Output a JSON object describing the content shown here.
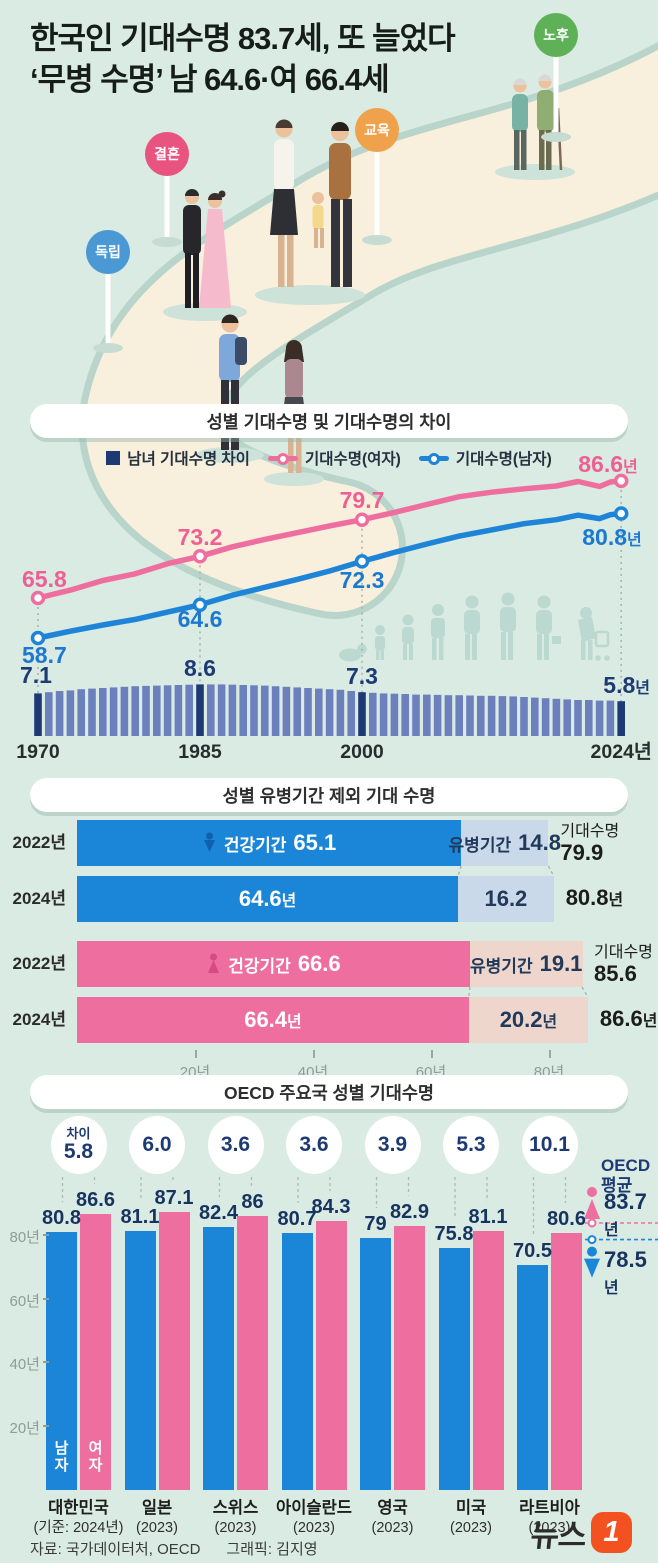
{
  "title": {
    "line1": "한국인 기대수명 83.7세, 또 늘었다",
    "line2": "‘무병 수명’ 남 64.6·여 66.4세"
  },
  "signs": [
    {
      "label": "독립",
      "color": "#4a98d4"
    },
    {
      "label": "결혼",
      "color": "#e8537f"
    },
    {
      "label": "교육",
      "color": "#f0a14b"
    },
    {
      "label": "노후",
      "color": "#5fb158"
    }
  ],
  "colors": {
    "mint_bg": "#d9ebe2",
    "navy": "#1e3a74",
    "diff_bar": "#6d80be",
    "female_pink": "#ee6f9f",
    "male_blue": "#1b86d8",
    "female_light": "#eed6cc",
    "male_light": "#c9d9e9",
    "female_label": "#ee5f94",
    "male_label": "#1d78cf",
    "silhouette": "#bcd9d1",
    "logo_orange": "#f3511f"
  },
  "chart_data": [
    {
      "type": "line",
      "title": "성별 기대수명 및 기대수명의 차이",
      "legend": [
        "남녀 기대수명 차이",
        "기대수명(여자)",
        "기대수명(남자)"
      ],
      "x_axis_labels": [
        "1970",
        "1985",
        "2000",
        "2024년"
      ],
      "anchor_years": [
        1970,
        1985,
        2000,
        2024
      ],
      "series": [
        {
          "name": "기대수명(여자)",
          "color": "#ee6f9f",
          "label_color": "#ee5f94",
          "points": [
            [
              1970,
              65.8
            ],
            [
              1973,
              67.2
            ],
            [
              1976,
              68.9
            ],
            [
              1979,
              70.1
            ],
            [
              1982,
              71.9
            ],
            [
              1985,
              73.2
            ],
            [
              1988,
              74.9
            ],
            [
              1991,
              76.2
            ],
            [
              1994,
              77.4
            ],
            [
              1997,
              78.6
            ],
            [
              2000,
              79.7
            ],
            [
              2003,
              81.0
            ],
            [
              2006,
              82.4
            ],
            [
              2009,
              83.8
            ],
            [
              2012,
              84.6
            ],
            [
              2015,
              85.2
            ],
            [
              2018,
              85.7
            ],
            [
              2020,
              86.5
            ],
            [
              2022,
              85.6
            ],
            [
              2023,
              86.4
            ],
            [
              2024,
              86.6
            ]
          ],
          "callouts": {
            "1970": "65.8",
            "1985": "73.2",
            "2000": "79.7",
            "2024": "86.6년"
          }
        },
        {
          "name": "기대수명(남자)",
          "color": "#1d84d8",
          "label_color": "#1d78cf",
          "points": [
            [
              1970,
              58.7
            ],
            [
              1973,
              59.9
            ],
            [
              1976,
              61.0
            ],
            [
              1979,
              62.0
            ],
            [
              1982,
              63.3
            ],
            [
              1985,
              64.6
            ],
            [
              1988,
              66.3
            ],
            [
              1991,
              67.7
            ],
            [
              1994,
              69.1
            ],
            [
              1997,
              70.6
            ],
            [
              2000,
              72.3
            ],
            [
              2003,
              73.9
            ],
            [
              2006,
              75.4
            ],
            [
              2009,
              76.8
            ],
            [
              2012,
              77.9
            ],
            [
              2015,
              79.0
            ],
            [
              2018,
              79.7
            ],
            [
              2020,
              80.5
            ],
            [
              2022,
              79.9
            ],
            [
              2023,
              80.6
            ],
            [
              2024,
              80.8
            ]
          ],
          "callouts": {
            "1970": "58.7",
            "1985": "64.6",
            "2000": "72.3",
            "2024": "80.8년"
          }
        }
      ],
      "diff": {
        "name": "남녀 기대수명 차이",
        "start_year": 1970,
        "values": [
          7.1,
          7.3,
          7.5,
          7.6,
          7.8,
          7.9,
          8.0,
          8.1,
          8.2,
          8.3,
          8.35,
          8.4,
          8.45,
          8.5,
          8.55,
          8.6,
          8.6,
          8.6,
          8.55,
          8.5,
          8.45,
          8.4,
          8.3,
          8.2,
          8.1,
          8.0,
          7.9,
          7.8,
          7.7,
          7.5,
          7.3,
          7.2,
          7.1,
          7.05,
          7.0,
          6.9,
          6.9,
          6.85,
          6.8,
          6.8,
          6.75,
          6.7,
          6.7,
          6.65,
          6.6,
          6.5,
          6.4,
          6.3,
          6.2,
          6.1,
          6.0,
          6.0,
          5.9,
          5.9,
          5.8
        ],
        "highlight_years": [
          1970,
          1985,
          2000,
          2024
        ],
        "callouts": {
          "1970": "7.1",
          "1985": "8.6",
          "2000": "7.3",
          "2024": "5.8년"
        }
      }
    },
    {
      "type": "stacked-bar",
      "title": "성별 유병기간 제외 기대 수명",
      "x_ticks": [
        {
          "v": 20,
          "label": "20년"
        },
        {
          "v": 40,
          "label": "40년"
        },
        {
          "v": 60,
          "label": "60년"
        },
        {
          "v": 80,
          "label": "80년"
        }
      ],
      "rows": [
        {
          "year": "2022년",
          "gender": "male",
          "show_icon": true,
          "healthy": {
            "v": 65.1,
            "caption": "건강기간",
            "value": "65.1"
          },
          "morbid": {
            "v": 14.8,
            "caption": "유병기간",
            "value": "14.8"
          },
          "total": {
            "v": 79.9,
            "caption": "기대수명",
            "value": "79.9"
          }
        },
        {
          "year": "2024년",
          "gender": "male",
          "show_icon": false,
          "healthy": {
            "v": 64.6,
            "caption": "",
            "value": "64.6년"
          },
          "morbid": {
            "v": 16.2,
            "caption": "",
            "value": "16.2"
          },
          "total": {
            "v": 80.8,
            "caption": "",
            "value": "80.8년"
          }
        },
        {
          "year": "2022년",
          "gender": "female",
          "show_icon": true,
          "healthy": {
            "v": 66.6,
            "caption": "건강기간",
            "value": "66.6"
          },
          "morbid": {
            "v": 19.1,
            "caption": "유병기간",
            "value": "19.1"
          },
          "total": {
            "v": 85.6,
            "caption": "기대수명",
            "value": "85.6"
          }
        },
        {
          "year": "2024년",
          "gender": "female",
          "show_icon": false,
          "healthy": {
            "v": 66.4,
            "caption": "",
            "value": "66.4년"
          },
          "morbid": {
            "v": 20.2,
            "caption": "",
            "value": "20.2년"
          },
          "total": {
            "v": 86.6,
            "caption": "",
            "value": "86.6년"
          }
        }
      ]
    },
    {
      "type": "grouped-bar",
      "title": "OECD 주요국 성별 기대수명",
      "y_ticks": [
        {
          "v": 80,
          "label": "80년"
        },
        {
          "v": 60,
          "label": "60년"
        },
        {
          "v": 40,
          "label": "40년"
        },
        {
          "v": 20,
          "label": "20년"
        }
      ],
      "bar_labels": {
        "male": "남자",
        "female": "여자"
      },
      "diff_caption": "차이",
      "countries": [
        {
          "name": "대한민국",
          "note": "(기준: 2024년)",
          "male": 80.8,
          "female": 86.6,
          "male_label": "80.8",
          "female_label": "86.6",
          "diff": "5.8"
        },
        {
          "name": "일본",
          "note": "(2023)",
          "male": 81.1,
          "female": 87.1,
          "male_label": "81.1",
          "female_label": "87.1",
          "diff": "6.0"
        },
        {
          "name": "스위스",
          "note": "(2023)",
          "male": 82.4,
          "female": 86,
          "male_label": "82.4",
          "female_label": "86",
          "diff": "3.6"
        },
        {
          "name": "아이슬란드",
          "note": "(2023)",
          "male": 80.7,
          "female": 84.3,
          "male_label": "80.7",
          "female_label": "84.3",
          "diff": "3.6"
        },
        {
          "name": "영국",
          "note": "(2023)",
          "male": 79,
          "female": 82.9,
          "male_label": "79",
          "female_label": "82.9",
          "diff": "3.9"
        },
        {
          "name": "미국",
          "note": "(2023)",
          "male": 75.8,
          "female": 81.1,
          "male_label": "75.8",
          "female_label": "81.1",
          "diff": "5.3"
        },
        {
          "name": "라트비아",
          "note": "(2023)",
          "male": 70.5,
          "female": 80.6,
          "male_label": "70.5",
          "female_label": "80.6",
          "diff": "10.1"
        }
      ],
      "oecd_avg": {
        "caption_line1": "OECD",
        "caption_line2": "평균",
        "female": 83.7,
        "male": 78.5,
        "female_label": "83.7년",
        "male_label": "78.5년"
      }
    }
  ],
  "footer": {
    "source": "자료: 국가데이터처, OECD",
    "credit": "그래픽: 김지영",
    "logo_text": "뉴스",
    "logo_badge": "1"
  }
}
